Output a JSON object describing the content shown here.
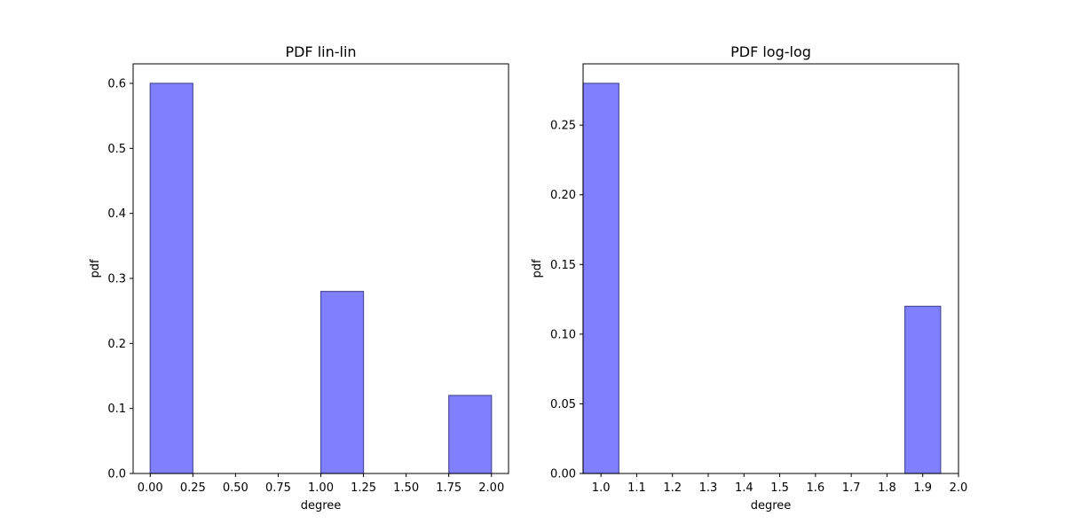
{
  "chart_data": [
    {
      "type": "bar",
      "title": "PDF lin-lin",
      "xlabel": "degree",
      "ylabel": "pdf",
      "xlim": [
        -0.1,
        2.1
      ],
      "ylim": [
        0,
        0.63
      ],
      "x_ticks": [
        0.0,
        0.25,
        0.5,
        0.75,
        1.0,
        1.25,
        1.5,
        1.75,
        2.0
      ],
      "x_tick_labels": [
        "0.00",
        "0.25",
        "0.50",
        "0.75",
        "1.00",
        "1.25",
        "1.50",
        "1.75",
        "2.00"
      ],
      "y_ticks": [
        0.0,
        0.1,
        0.2,
        0.3,
        0.4,
        0.5,
        0.6
      ],
      "y_tick_labels": [
        "0.0",
        "0.1",
        "0.2",
        "0.3",
        "0.4",
        "0.5",
        "0.6"
      ],
      "bars": [
        {
          "x0": 0.0,
          "x1": 0.25,
          "value": 0.6
        },
        {
          "x0": 1.0,
          "x1": 1.25,
          "value": 0.28
        },
        {
          "x0": 1.75,
          "x1": 2.0,
          "value": 0.12
        }
      ],
      "bar_fill": "#8080ff",
      "bar_edge": "#4d4d99",
      "grid": false
    },
    {
      "type": "bar",
      "title": "PDF log-log",
      "xlabel": "degree",
      "ylabel": "pdf",
      "xlim": [
        0.95,
        2.0
      ],
      "ylim": [
        0,
        0.294
      ],
      "x_ticks": [
        1.0,
        1.1,
        1.2,
        1.3,
        1.4,
        1.5,
        1.6,
        1.7,
        1.8,
        1.9,
        2.0
      ],
      "x_tick_labels": [
        "1.0",
        "1.1",
        "1.2",
        "1.3",
        "1.4",
        "1.5",
        "1.6",
        "1.7",
        "1.8",
        "1.9",
        "2.0"
      ],
      "y_ticks": [
        0.0,
        0.05,
        0.1,
        0.15,
        0.2,
        0.25
      ],
      "y_tick_labels": [
        "0.00",
        "0.05",
        "0.10",
        "0.15",
        "0.20",
        "0.25"
      ],
      "bars": [
        {
          "x0": 0.95,
          "x1": 1.05,
          "value": 0.28
        },
        {
          "x0": 1.85,
          "x1": 1.95,
          "value": 0.12
        }
      ],
      "bar_fill": "#8080ff",
      "bar_edge": "#4d4d99",
      "grid": false
    }
  ]
}
